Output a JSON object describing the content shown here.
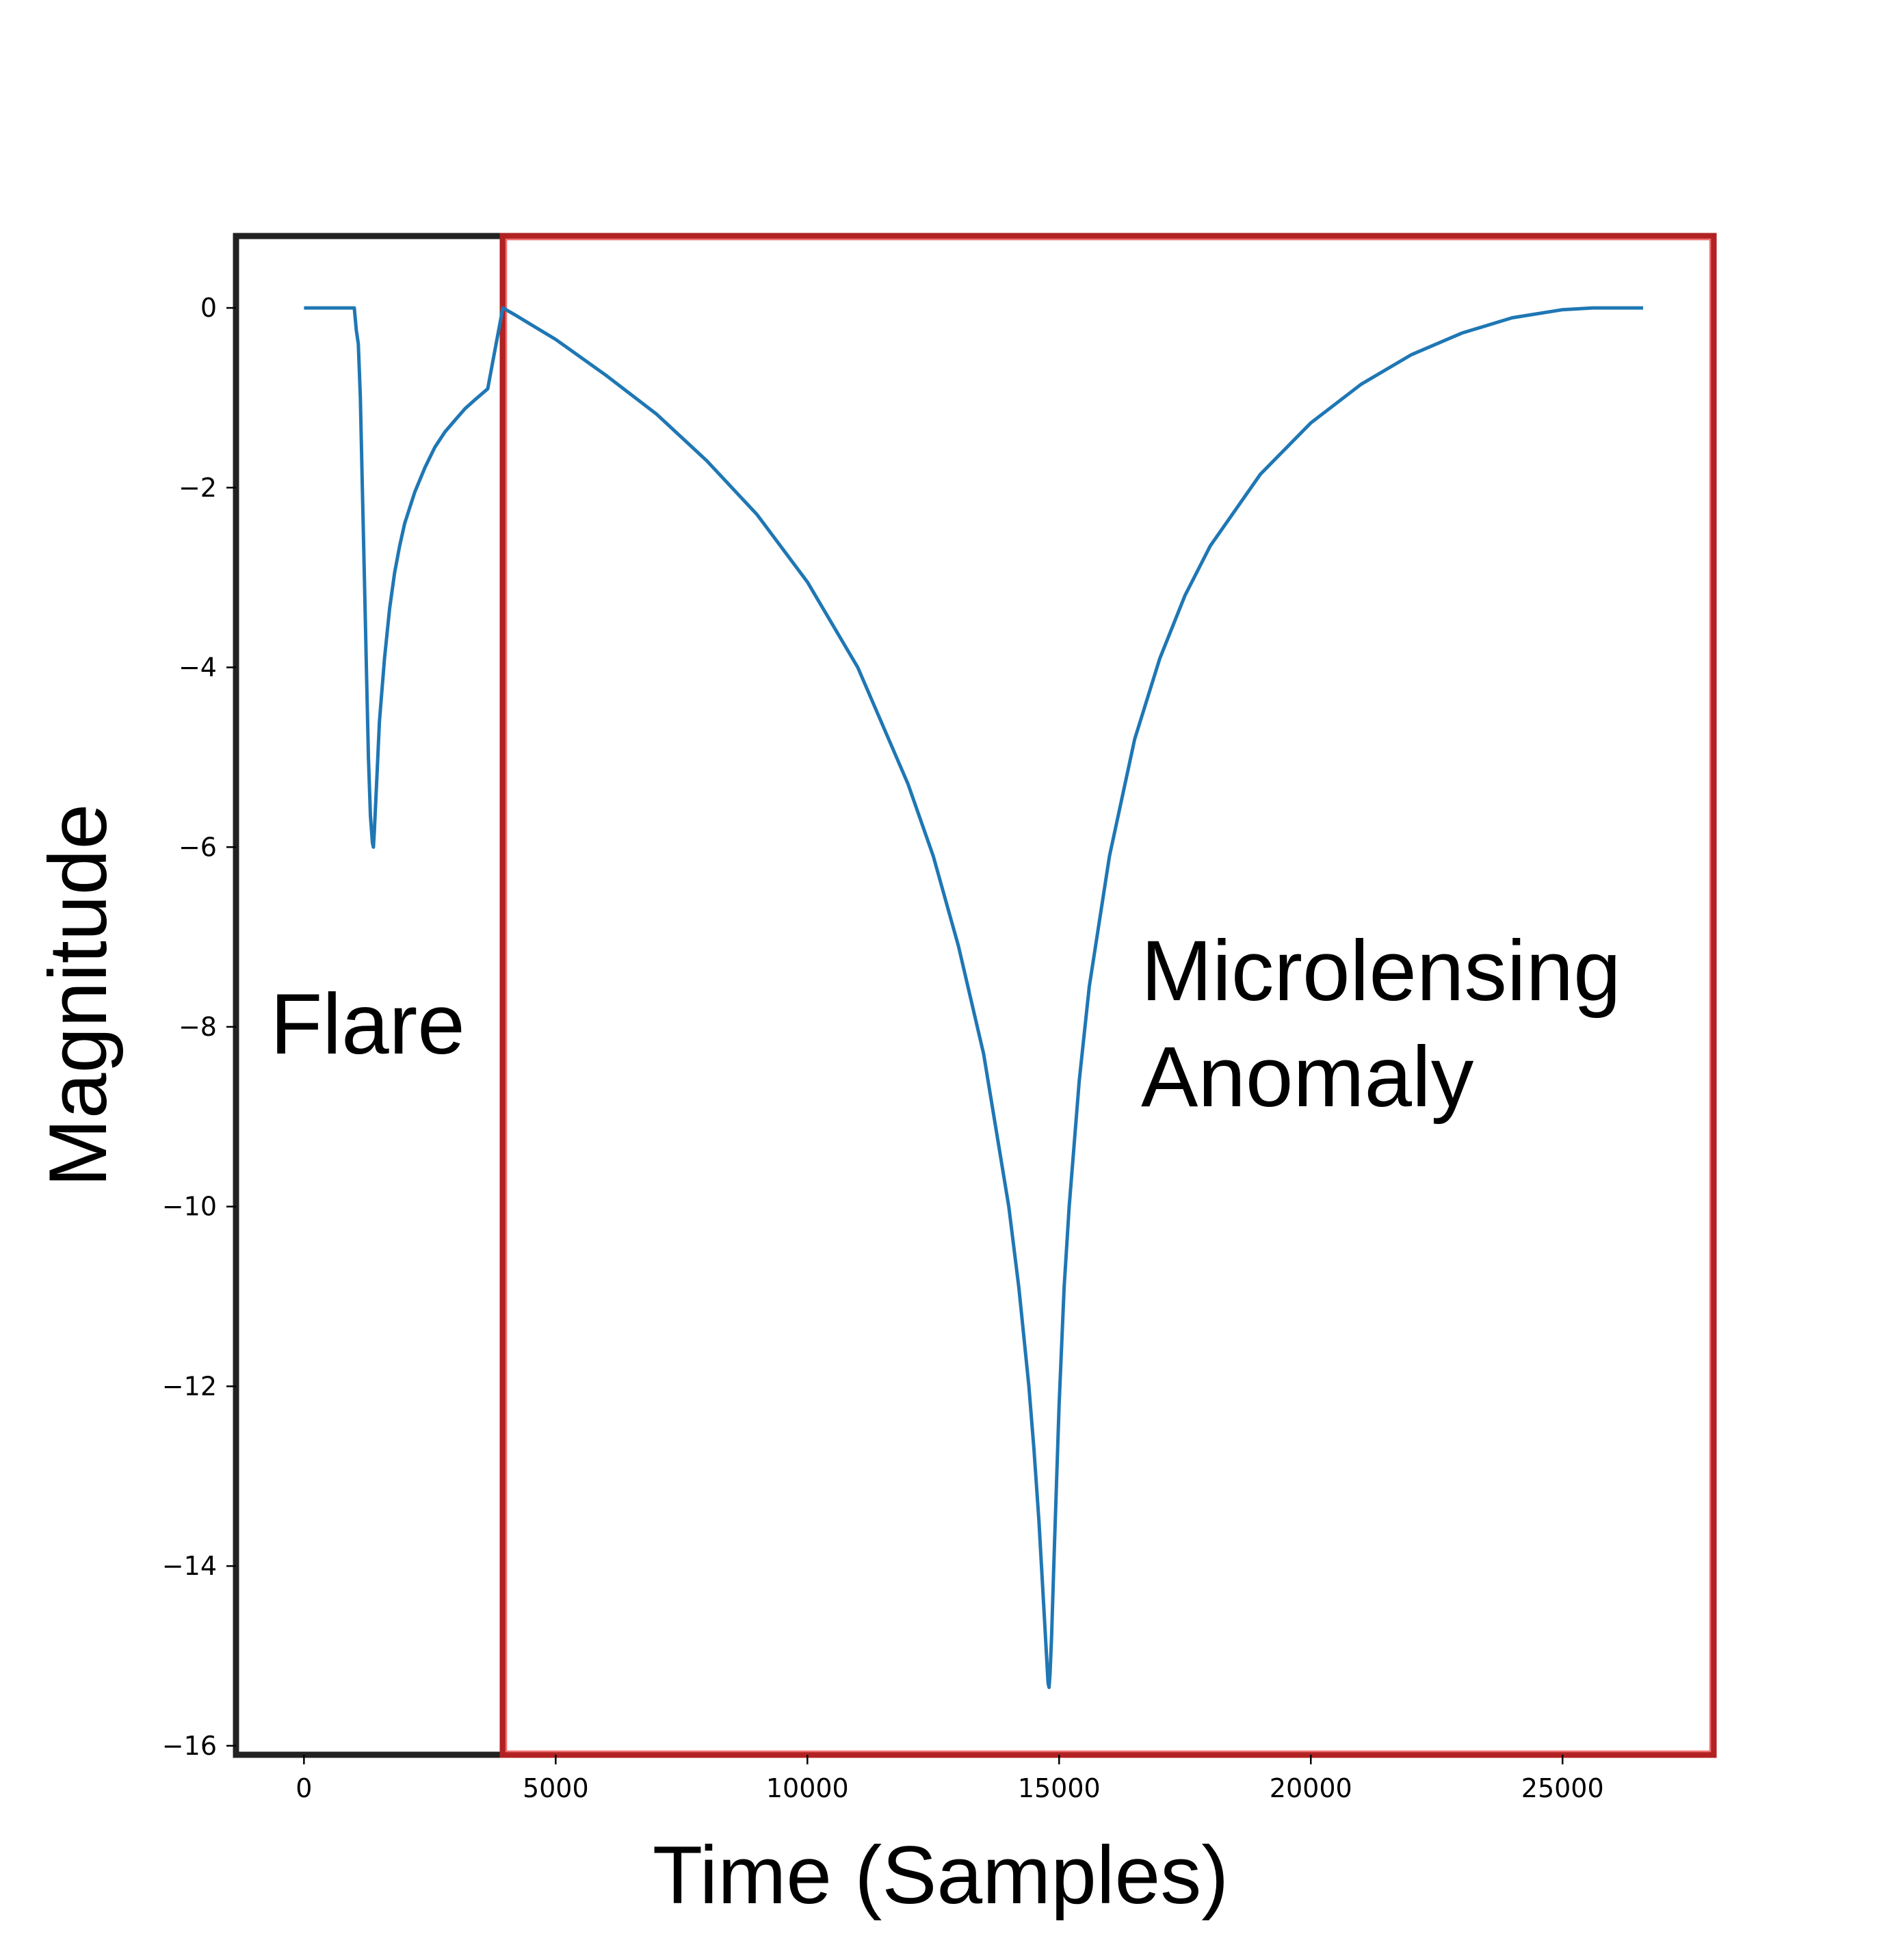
{
  "chart_data": {
    "type": "line",
    "title": "",
    "xlabel": "Time (Samples)",
    "ylabel": "Magnitude",
    "xlim": [
      -1350,
      28000
    ],
    "ylim": [
      -16.1,
      0.8
    ],
    "xticks": [
      0,
      5000,
      10000,
      15000,
      20000,
      25000
    ],
    "xtick_labels": [
      "0",
      "5000",
      "10000",
      "15000",
      "20000",
      "25000"
    ],
    "yticks": [
      0,
      -2,
      -4,
      -6,
      -8,
      -10,
      -12,
      -14,
      -16
    ],
    "ytick_labels": [
      "0",
      "−2",
      "−4",
      "−6",
      "−8",
      "−10",
      "−12",
      "−14",
      "−16"
    ],
    "grid": false,
    "legend": "none",
    "series": [
      {
        "color": "#1f77b4",
        "x": [
          0,
          1000,
          1040,
          1080,
          1120,
          1160,
          1200,
          1240,
          1280,
          1320,
          1360,
          1380,
          1400,
          1450,
          1500,
          1600,
          1700,
          1800,
          1900,
          2000,
          2200,
          2400,
          2600,
          2800,
          3000,
          3200,
          3400,
          3650,
          3750,
          3850,
          3950,
          4200,
          5000,
          6000,
          7000,
          8000,
          9000,
          10000,
          11000,
          12000,
          12500,
          13000,
          13500,
          14000,
          14200,
          14400,
          14500,
          14600,
          14700,
          14750,
          14780,
          14800,
          14820,
          14850,
          14900,
          15000,
          15100,
          15200,
          15400,
          15600,
          16000,
          16500,
          17000,
          17500,
          18000,
          19000,
          20000,
          21000,
          22000,
          23000,
          24000,
          25000,
          25600,
          26000,
          26600
        ],
        "y": [
          0,
          0,
          -0.25,
          -0.4,
          -1.0,
          -2.0,
          -3.0,
          -4.0,
          -5.0,
          -5.65,
          -5.95,
          -6.0,
          -5.8,
          -5.2,
          -4.6,
          -3.9,
          -3.35,
          -2.95,
          -2.65,
          -2.4,
          -2.05,
          -1.78,
          -1.55,
          -1.38,
          -1.25,
          -1.12,
          -1.02,
          -0.9,
          -0.6,
          -0.3,
          0,
          -0.08,
          -0.35,
          -0.75,
          -1.18,
          -1.7,
          -2.3,
          -3.05,
          -4.0,
          -5.3,
          -6.1,
          -7.1,
          -8.3,
          -10.0,
          -10.9,
          -12.0,
          -12.7,
          -13.5,
          -14.5,
          -15.0,
          -15.3,
          -15.35,
          -15.2,
          -14.8,
          -13.9,
          -12.2,
          -10.9,
          -10.0,
          -8.6,
          -7.55,
          -6.1,
          -4.8,
          -3.9,
          -3.2,
          -2.65,
          -1.85,
          -1.28,
          -0.85,
          -0.52,
          -0.28,
          -0.11,
          -0.02,
          0,
          0,
          0
        ]
      }
    ],
    "regions": [
      {
        "label": "Flare",
        "x_start": -1350,
        "x_end": 3950,
        "color": "#222222"
      },
      {
        "label": "Microlensing Anomaly",
        "x_start": 3950,
        "x_end": 28000,
        "color": "#d62728"
      }
    ],
    "annotations": [
      {
        "text": "Flare"
      },
      {
        "text": "Microlensing"
      },
      {
        "text": "Anomaly"
      }
    ]
  }
}
